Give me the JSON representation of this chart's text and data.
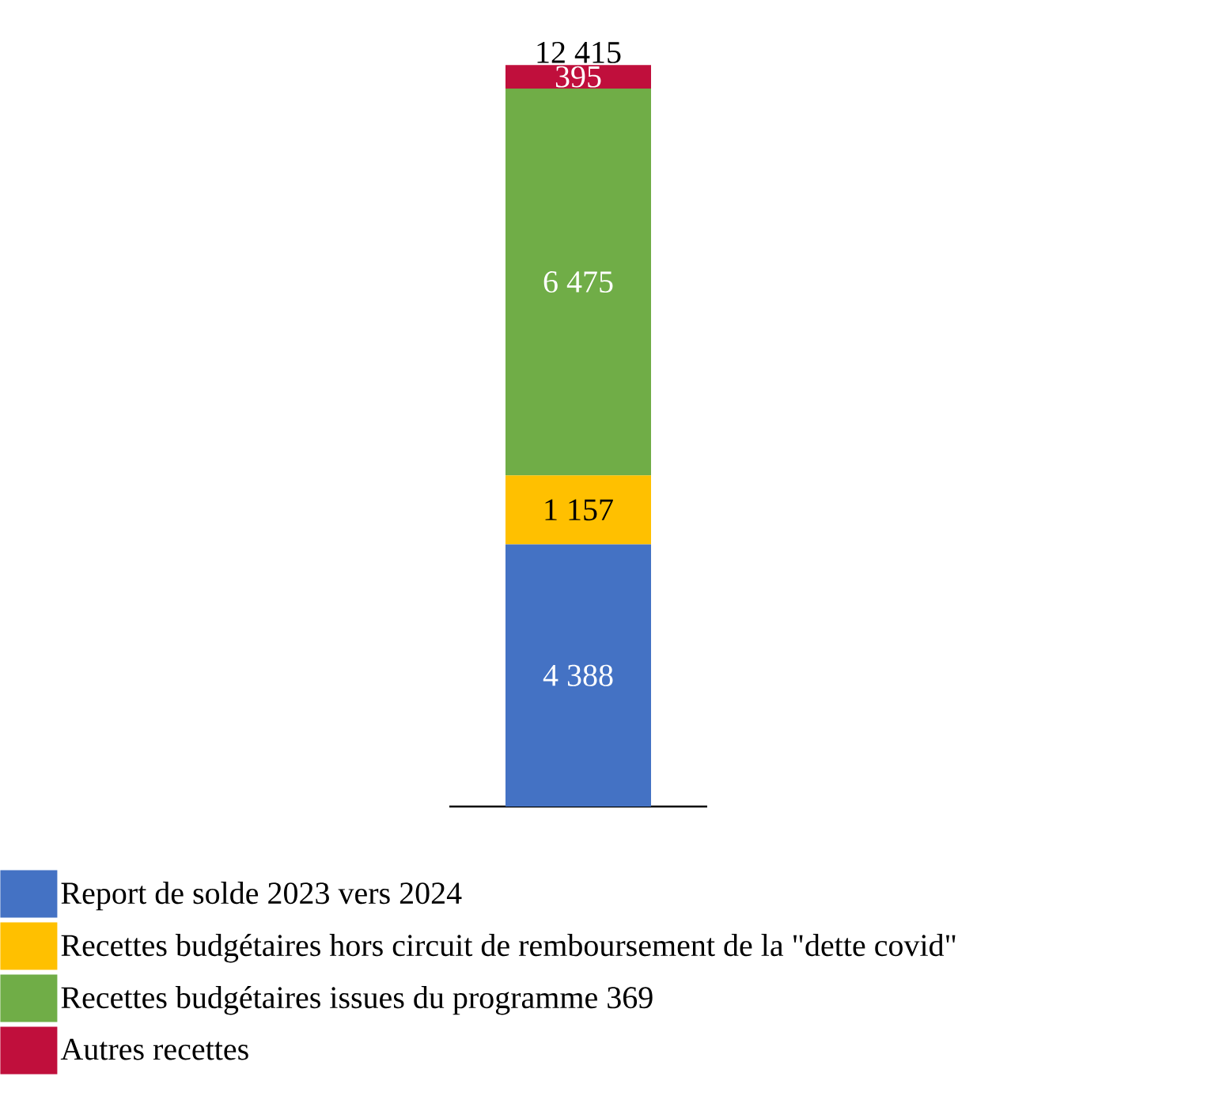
{
  "chart_data": {
    "type": "bar",
    "stacked": true,
    "categories": [
      null
    ],
    "legend": "bottom",
    "series": [
      {
        "name": "Report de solde 2023 vers 2024",
        "color": "#4472c4",
        "values": [
          4388
        ],
        "value_labels": [
          "4 388"
        ]
      },
      {
        "name": "Recettes budgétaires hors circuit de remboursement de la \"dette covid\"",
        "color": "#ffc000",
        "values": [
          1157
        ],
        "value_labels": [
          "1 157"
        ]
      },
      {
        "name": "Recettes budgétaires issues du programme 369",
        "color": "#70ad47",
        "values": [
          6475
        ],
        "value_labels": [
          "6 475"
        ]
      },
      {
        "name": "Autres recettes",
        "color": "#c00f3c",
        "values": [
          395
        ],
        "value_labels": [
          "395"
        ]
      }
    ],
    "totals": [
      "12 415"
    ]
  }
}
